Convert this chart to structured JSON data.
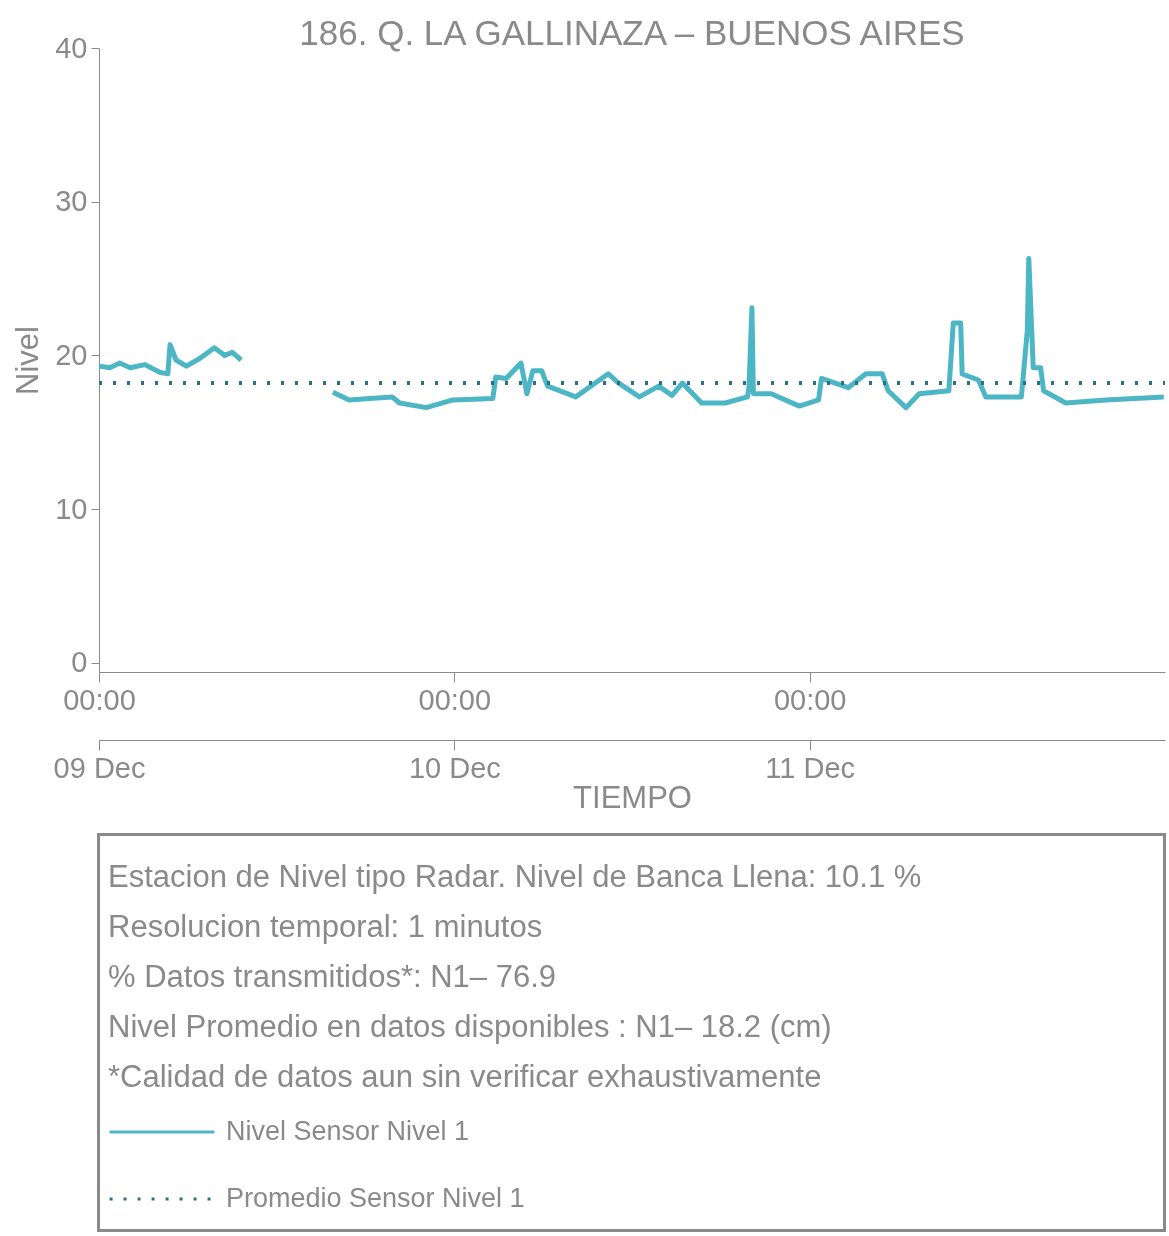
{
  "chart_data": {
    "type": "line",
    "title": "186. Q. LA GALLINAZA – BUENOS AIRES",
    "xlabel": "TIEMPO",
    "ylabel": "Nivel",
    "x": [
      "--12-09T00:00",
      "--12-09T00:44",
      "--12-09T01:24",
      "--12-09T02:06",
      "--12-09T03:06",
      "--12-09T04:06",
      "--12-09T04:39",
      "--12-09T04:48",
      "--12-09T05:12",
      "--12-09T05:54",
      "--12-09T06:48",
      "--12-09T07:48",
      "--12-09T08:30",
      "--12-09T09:00",
      "--12-09T09:36",
      "--12-09T12:42",
      "--12-09T15:48",
      "--12-09T16:54",
      "--12-09T18:18",
      "--12-09T19:48",
      "--12-09T20:18",
      "--12-09T22:06",
      "--12-09T23:54",
      "--12-10T02:36",
      "--12-10T02:48",
      "--12-10T03:30",
      "--12-10T04:30",
      "--12-10T04:54",
      "--12-10T05:18",
      "--12-10T05:54",
      "--12-10T06:18",
      "--12-10T08:12",
      "--12-10T10:24",
      "--12-10T11:06",
      "--12-10T12:30",
      "--12-10T13:48",
      "--12-10T14:42",
      "--12-10T15:24",
      "--12-10T16:42",
      "--12-10T18:18",
      "--12-10T19:48",
      "--12-10T19:54",
      "--12-10T20:06",
      "--12-10T20:12",
      "--12-10T21:24",
      "--12-10T23:18",
      "--12-11T00:36",
      "--12-11T00:48",
      "--12-11T02:36",
      "--12-11T03:48",
      "--12-11T04:54",
      "--12-11T05:18",
      "--12-11T06:30",
      "--12-11T07:24",
      "--12-11T09:24",
      "--12-11T09:42",
      "--12-11T10:12",
      "--12-11T10:18",
      "--12-11T11:24",
      "--12-11T11:54",
      "--12-11T14:18",
      "--12-11T14:42",
      "--12-11T14:48",
      "--12-11T15:00",
      "--12-11T15:06",
      "--12-11T15:36",
      "--12-11T15:48",
      "--12-11T17:18",
      "--12-11T20:00",
      "--12-11T23:55"
    ],
    "series": [
      {
        "name": "Nivel Sensor Nivel 1",
        "color": "#4db6c5",
        "values": [
          19.3,
          19.2,
          19.5,
          19.2,
          19.4,
          18.9,
          18.8,
          20.7,
          19.7,
          19.3,
          19.8,
          20.5,
          20.0,
          20.2,
          19.7,
          null,
          17.6,
          17.1,
          17.2,
          17.3,
          16.9,
          16.6,
          17.1,
          17.2,
          18.6,
          18.5,
          19.5,
          17.5,
          19.0,
          19.0,
          18.0,
          17.3,
          18.8,
          18.2,
          17.3,
          18.0,
          17.4,
          18.2,
          16.9,
          16.9,
          17.3,
          17.9,
          23.1,
          17.5,
          17.5,
          16.7,
          17.1,
          18.5,
          17.9,
          18.8,
          18.8,
          17.7,
          16.6,
          17.5,
          17.7,
          22.1,
          22.1,
          18.8,
          18.4,
          17.3,
          17.3,
          21.6,
          26.3,
          21.6,
          19.2,
          19.2,
          17.7,
          16.9,
          17.1,
          17.3
        ]
      }
    ],
    "ref_lines": [
      {
        "axis": "y",
        "value": 18.2,
        "label": "Promedio Sensor Nivel 1",
        "color": "#2b7089",
        "line_style": "dotted"
      }
    ],
    "xlim": [
      "--12-09T00:00",
      "--12-12T00:00"
    ],
    "xticks": [
      {
        "value": "--12-09T00:00",
        "label": "00:00"
      },
      {
        "value": "--12-10T00:00",
        "label": "00:00"
      },
      {
        "value": "--12-11T00:00",
        "label": "00:00"
      }
    ],
    "x2lim": [
      "--12-09T00:00",
      "--12-12T00:00"
    ],
    "x2ticks": [
      {
        "value": "--12-09",
        "label": "09 Dec"
      },
      {
        "value": "--12-10",
        "label": "10 Dec"
      },
      {
        "value": "--12-11",
        "label": "11 Dec"
      }
    ],
    "ylim": [
      -0.6,
      40
    ],
    "yticks": [
      0,
      10,
      20,
      30,
      40
    ],
    "grid": false,
    "legend": "bottom left",
    "line_style": "solid",
    "annotations": [
      "Estacion de Nivel tipo Radar. Nivel de Banca Llena: 10.1 %",
      "Resolucion temporal: 1 minutos",
      "% Datos transmitidos*: N1– 76.9",
      "Nivel Promedio en datos disponibles : N1– 18.2 (cm)",
      "*Calidad de datos aun sin verificar exhaustivamente"
    ]
  }
}
